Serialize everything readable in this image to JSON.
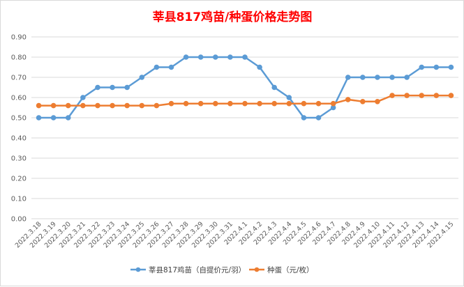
{
  "chart_data": {
    "type": "line",
    "title": "莘县817鸡苗/种蛋价格走势图",
    "title_color": "#ff0000",
    "categories": [
      "2022.3.18",
      "2022.3.19",
      "2022.3.20",
      "2022.3.21",
      "2022.3.22",
      "2022.3.23",
      "2022.3.24",
      "2022.3.25",
      "2022.3.26",
      "2022.3.27",
      "2022.3.28",
      "2022.3.29",
      "2022.3.30",
      "2022.3.31",
      "2022.4.1",
      "2022.4.2",
      "2022.4.3",
      "2022.4.4",
      "2022.4.5",
      "2022.4.6",
      "2022.4.7",
      "2022.4.8",
      "2022.4.9",
      "2022.4.10",
      "2022.4.11",
      "2022.4.12",
      "2022.4.13",
      "2022.4.14",
      "2022.4.15"
    ],
    "y_ticks": [
      "0.00",
      "0.10",
      "0.20",
      "0.30",
      "0.40",
      "0.50",
      "0.60",
      "0.70",
      "0.80",
      "0.90"
    ],
    "ylim": [
      0,
      0.9
    ],
    "grid": true,
    "legend_position": "bottom",
    "series": [
      {
        "name": "莘县817鸡苗（自提价元/羽）",
        "color": "#5b9bd5",
        "values": [
          0.5,
          0.5,
          0.5,
          0.6,
          0.65,
          0.65,
          0.65,
          0.7,
          0.75,
          0.75,
          0.8,
          0.8,
          0.8,
          0.8,
          0.8,
          0.75,
          0.65,
          0.6,
          0.5,
          0.5,
          0.55,
          0.7,
          0.7,
          0.7,
          0.7,
          0.7,
          0.75,
          0.75,
          0.75
        ]
      },
      {
        "name": "种蛋（元/枚）",
        "color": "#ed7d31",
        "values": [
          0.56,
          0.56,
          0.56,
          0.56,
          0.56,
          0.56,
          0.56,
          0.56,
          0.56,
          0.57,
          0.57,
          0.57,
          0.57,
          0.57,
          0.57,
          0.57,
          0.57,
          0.57,
          0.57,
          0.57,
          0.57,
          0.59,
          0.58,
          0.58,
          0.61,
          0.61,
          0.61,
          0.61,
          0.61
        ]
      }
    ]
  }
}
